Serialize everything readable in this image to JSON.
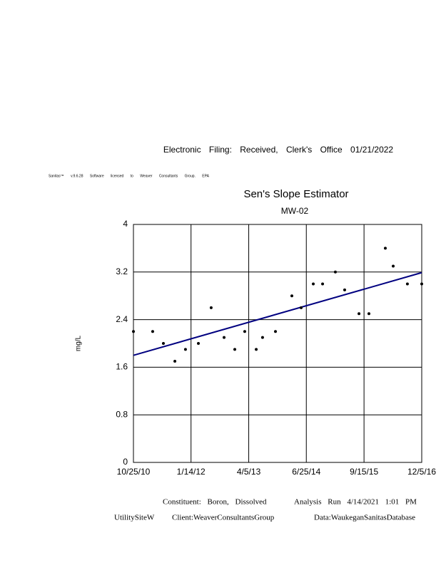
{
  "header": {
    "filing": "Electronic Filing: Received, Clerk's Office 01/21/2022",
    "software": "Sanitas™ v.9.6.28 Software licensed to Weaver Consultants Group. EPA"
  },
  "chart_data": {
    "type": "scatter",
    "title": "Sen's Slope Estimator",
    "subtitle": "MW-02",
    "y_label": "mg/L",
    "x": [
      "2010-10-25",
      "2011-03-23",
      "2011-06-14",
      "2011-09-11",
      "2011-12-02",
      "2012-03-11",
      "2012-06-18",
      "2012-09-26",
      "2012-12-18",
      "2013-03-05",
      "2013-06-02",
      "2013-07-21",
      "2013-10-29",
      "2014-03-05",
      "2014-05-16",
      "2014-08-18",
      "2014-10-29",
      "2015-02-05",
      "2015-04-18",
      "2015-08-07",
      "2015-10-23",
      "2016-02-27",
      "2016-04-28",
      "2016-08-16",
      "2016-12-05"
    ],
    "values": [
      2.2,
      2.2,
      2.0,
      1.7,
      1.9,
      2.0,
      2.6,
      2.1,
      1.9,
      2.2,
      1.9,
      2.1,
      2.2,
      2.8,
      2.6,
      3.0,
      3.0,
      3.2,
      2.9,
      2.5,
      2.5,
      3.6,
      3.3,
      3.0,
      3.0
    ],
    "color": "#000000",
    "trend_line": {
      "x": [
        "2010-10-25",
        "2016-12-05"
      ],
      "values": [
        1.8,
        3.19
      ],
      "color": "#000080"
    },
    "xlim": [
      "2010-10-25",
      "2016-12-05"
    ],
    "xticks": [
      {
        "value": "2010-10-25",
        "label": "10/25/10"
      },
      {
        "value": "2012-01-14",
        "label": "1/14/12"
      },
      {
        "value": "2013-04-05",
        "label": "4/5/13"
      },
      {
        "value": "2014-06-25",
        "label": "6/25/14"
      },
      {
        "value": "2015-09-15",
        "label": "9/15/15"
      },
      {
        "value": "2016-12-05",
        "label": "12/5/16"
      }
    ],
    "ylim": [
      0,
      4
    ],
    "yticks": [
      0,
      0.8,
      1.6,
      2.4,
      3.2,
      4
    ],
    "grid": true
  },
  "footer": {
    "constituent": "Constituent: Boron, Dissolved",
    "analysis": "Analysis Run 4/14/2021 1:01 PM",
    "site": "UtilitySiteW",
    "client": "Client:WeaverConsultantsGroup",
    "database": "Data:WaukeganSanitasDatabase"
  }
}
